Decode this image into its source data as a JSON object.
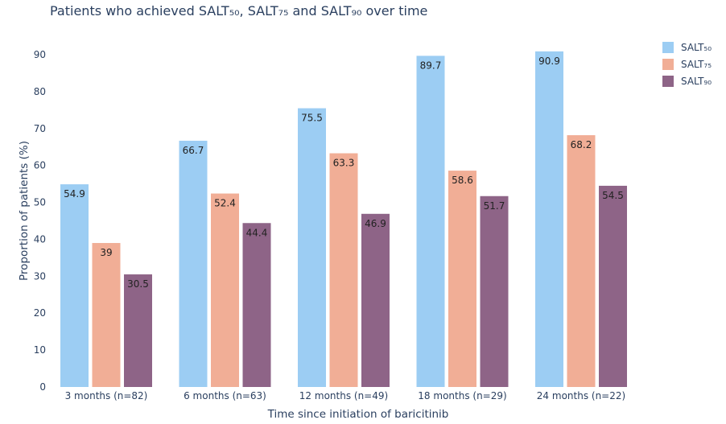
{
  "chart_data": {
    "type": "bar",
    "title": "Patients who achieved SALT₅₀, SALT₇₅ and SALT₉₀ over time",
    "xlabel": "Time since initiation of baricitinib",
    "ylabel": "Proportion of patients (%)",
    "categories": [
      "3 months (n=82)",
      "6 months (n=63)",
      "12 months (n=49)",
      "18 months (n=29)",
      "24 months (n=22)"
    ],
    "series": [
      {
        "name": "SALT₅₀",
        "color": "#9ccdf3",
        "values": [
          54.9,
          66.7,
          75.5,
          89.7,
          90.9
        ],
        "labels": [
          "54.9",
          "66.7",
          "75.5",
          "89.7",
          "90.9"
        ]
      },
      {
        "name": "SALT₇₅",
        "color": "#f1ae96",
        "values": [
          39,
          52.4,
          63.3,
          58.6,
          68.2
        ],
        "labels": [
          "39",
          "52.4",
          "63.3",
          "58.6",
          "68.2"
        ]
      },
      {
        "name": "SALT₉₀",
        "color": "#8e6487",
        "values": [
          30.5,
          44.4,
          46.9,
          51.7,
          54.5
        ],
        "labels": [
          "30.5",
          "44.4",
          "46.9",
          "51.7",
          "54.5"
        ]
      }
    ],
    "ylim": [
      0,
      95
    ],
    "yticks": [
      0,
      10,
      20,
      30,
      40,
      50,
      60,
      70,
      80,
      90
    ],
    "ytick_labels": [
      "0",
      "10",
      "20",
      "30",
      "40",
      "50",
      "60",
      "70",
      "80",
      "90"
    ],
    "grid": false,
    "legend_position": "top-right"
  }
}
